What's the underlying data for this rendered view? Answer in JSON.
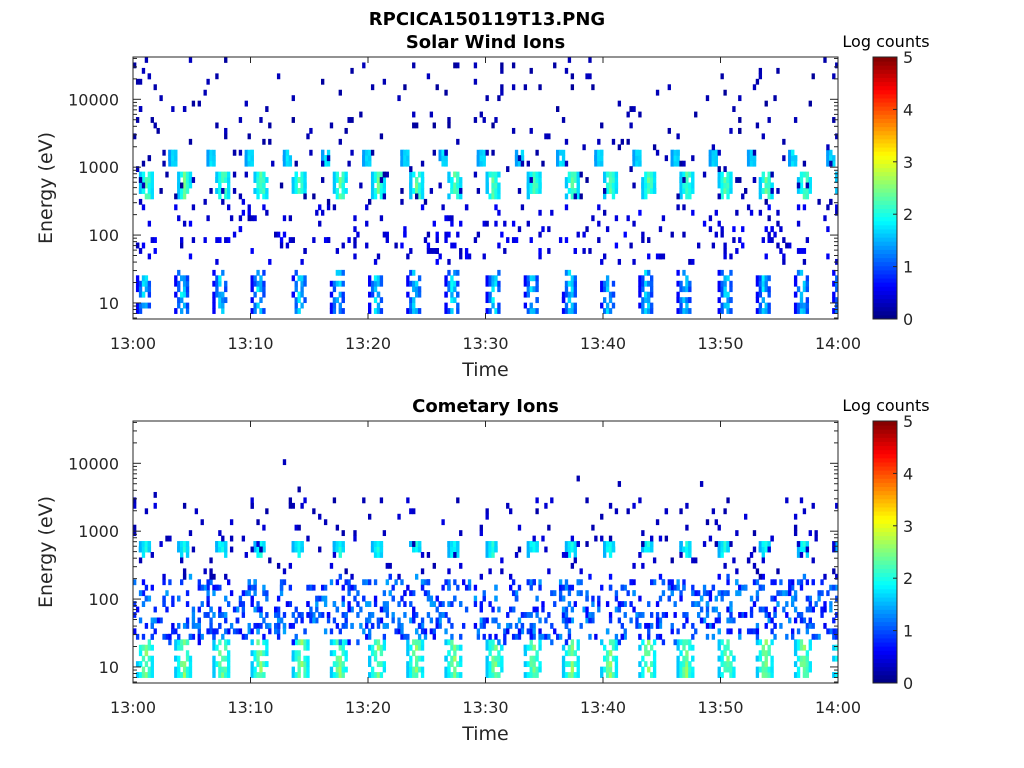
{
  "figure": {
    "title": "RPCICA150119T13.PNG"
  },
  "chart_data": [
    {
      "type": "heatmap",
      "title": "Solar Wind Ions",
      "xlabel": "Time",
      "ylabel": "Energy (eV)",
      "x_ticks": [
        "13:00",
        "13:10",
        "13:20",
        "13:30",
        "13:40",
        "13:50",
        "14:00"
      ],
      "x_range": [
        "13:00",
        "14:00"
      ],
      "y_scale": "log",
      "y_ticks": [
        "10",
        "100",
        "1000",
        "10000"
      ],
      "y_range": [
        5.8,
        42000
      ],
      "colorbar": {
        "label": "Log counts",
        "ticks": [
          "0",
          "1",
          "2",
          "3",
          "4",
          "5"
        ],
        "range": [
          0,
          5
        ]
      },
      "colormap": "jet",
      "features": [
        {
          "kind": "band",
          "energy": [
            380,
            850
          ],
          "start_min": 0.5,
          "period_min": 3.3,
          "width_min": 1.1,
          "level": 1.6,
          "peak_level": 2.6
        },
        {
          "kind": "band",
          "energy": [
            1100,
            1700
          ],
          "start_min": 3.0,
          "period_min": 3.3,
          "width_min": 0.7,
          "level": 1.4,
          "peak_level": 2.0
        },
        {
          "kind": "band",
          "energy": [
            7,
            28
          ],
          "start_min": 0.3,
          "period_min": 3.3,
          "width_min": 1.2,
          "level": 0.6,
          "peak_level": 2.2
        },
        {
          "kind": "scatter",
          "energy": [
            40,
            300
          ],
          "count": 260,
          "level": 0.4
        },
        {
          "kind": "scatter",
          "energy": [
            300,
            40000
          ],
          "count": 260,
          "level": 0.2
        }
      ]
    },
    {
      "type": "heatmap",
      "title": "Cometary Ions",
      "xlabel": "Time",
      "ylabel": "Energy (eV)",
      "x_ticks": [
        "13:00",
        "13:10",
        "13:20",
        "13:30",
        "13:40",
        "13:50",
        "14:00"
      ],
      "x_range": [
        "13:00",
        "14:00"
      ],
      "y_scale": "log",
      "y_ticks": [
        "10",
        "100",
        "1000",
        "10000"
      ],
      "y_range": [
        5.8,
        42000
      ],
      "colorbar": {
        "label": "Log counts",
        "ticks": [
          "0",
          "1",
          "2",
          "3",
          "4",
          "5"
        ],
        "range": [
          0,
          5
        ]
      },
      "colormap": "jet",
      "features": [
        {
          "kind": "band",
          "energy": [
            7,
            25
          ],
          "start_min": 0.3,
          "period_min": 3.3,
          "width_min": 1.4,
          "level": 1.6,
          "peak_level": 2.8
        },
        {
          "kind": "band",
          "energy": [
            480,
            700
          ],
          "start_min": 0.5,
          "period_min": 3.3,
          "width_min": 0.9,
          "level": 1.5,
          "peak_level": 2.2
        },
        {
          "kind": "scatter",
          "energy": [
            25,
            200
          ],
          "count": 900,
          "level": 0.9
        },
        {
          "kind": "scatter",
          "energy": [
            200,
            3000
          ],
          "count": 200,
          "level": 0.3
        },
        {
          "kind": "scatter",
          "energy": [
            3000,
            14000
          ],
          "count": 6,
          "level": 0.2
        }
      ]
    }
  ]
}
